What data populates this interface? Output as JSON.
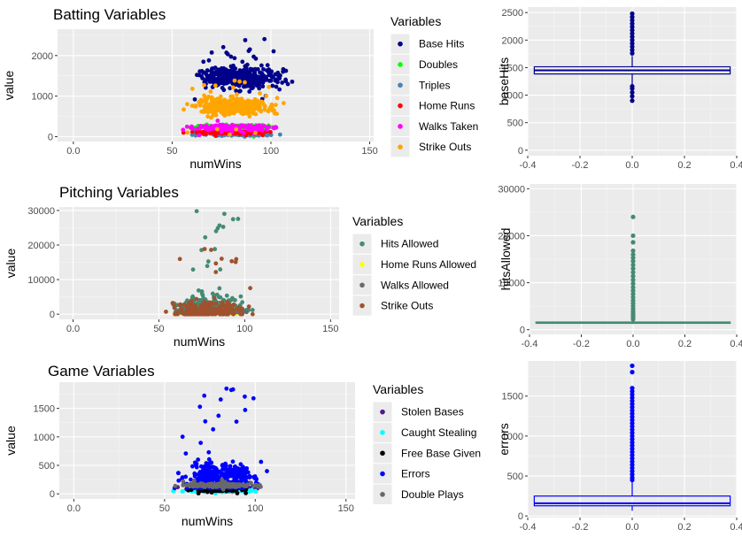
{
  "chart_data": [
    {
      "type": "scatter",
      "id": "batting",
      "title": "Batting Variables",
      "xlabel": "numWins",
      "ylabel": "value",
      "xlim": [
        -8,
        152
      ],
      "ylim": [
        -120,
        2650
      ],
      "xticks": [
        0,
        50,
        100,
        150
      ],
      "yticks": [
        0,
        1000,
        2000
      ],
      "legend_title": "Variables",
      "legend_position": "right",
      "grid": true,
      "series": [
        {
          "name": "Base Hits",
          "color": "#00008b",
          "xrange": [
            0,
            145
          ],
          "yrange": [
            900,
            2500
          ],
          "center": [
            85,
            1450
          ],
          "n": 420
        },
        {
          "name": "Doubles",
          "color": "#00ff00",
          "xrange": [
            0,
            145
          ],
          "yrange": [
            0,
            380
          ],
          "center": [
            80,
            240
          ],
          "n": 160
        },
        {
          "name": "Triples",
          "color": "#4682b4",
          "xrange": [
            0,
            145
          ],
          "yrange": [
            0,
            160
          ],
          "center": [
            80,
            50
          ],
          "n": 80
        },
        {
          "name": "Home Runs",
          "color": "#ff0000",
          "xrange": [
            0,
            145
          ],
          "yrange": [
            0,
            260
          ],
          "center": [
            80,
            110
          ],
          "n": 140
        },
        {
          "name": "Walks Taken",
          "color": "#ff00ff",
          "xrange": [
            0,
            145
          ],
          "yrange": [
            0,
            440
          ],
          "center": [
            80,
            230
          ],
          "n": 160
        },
        {
          "name": "Strike Outs",
          "color": "#ffa500",
          "xrange": [
            0,
            145
          ],
          "yrange": [
            0,
            1400
          ],
          "center": [
            80,
            750
          ],
          "n": 380
        }
      ]
    },
    {
      "type": "scatter",
      "id": "pitching",
      "title": "Pitching Variables",
      "xlabel": "numWins",
      "ylabel": "value",
      "xlim": [
        -8,
        155
      ],
      "ylim": [
        -1500,
        31000
      ],
      "xticks": [
        0,
        50,
        100,
        150
      ],
      "yticks": [
        0,
        10000,
        20000,
        30000
      ],
      "legend_title": "Variables",
      "legend_position": "right",
      "grid": true,
      "series": [
        {
          "name": "Hits Allowed",
          "color": "#458b74",
          "xrange": [
            0,
            145
          ],
          "yrange": [
            1200,
            30000
          ],
          "center": [
            80,
            1500
          ],
          "n": 260
        },
        {
          "name": "Home Runs Allowed",
          "color": "#ffff00",
          "xrange": [
            0,
            145
          ],
          "yrange": [
            0,
            300
          ],
          "center": [
            80,
            120
          ],
          "n": 80
        },
        {
          "name": "Walks Allowed",
          "color": "#696969",
          "xrange": [
            0,
            145
          ],
          "yrange": [
            0,
            1000
          ],
          "center": [
            80,
            550
          ],
          "n": 120
        },
        {
          "name": "Strike Outs",
          "color": "#a0522d",
          "xrange": [
            0,
            145
          ],
          "yrange": [
            0,
            19000
          ],
          "center": [
            80,
            800
          ],
          "n": 200
        }
      ]
    },
    {
      "type": "scatter",
      "id": "game",
      "title": "Game Variables",
      "xlabel": "numWins",
      "ylabel": "value",
      "xlim": [
        -8,
        155
      ],
      "ylim": [
        -90,
        1960
      ],
      "xticks": [
        0,
        50,
        100,
        150
      ],
      "yticks": [
        0,
        500,
        1000,
        1500
      ],
      "legend_title": "Variables",
      "legend_position": "right",
      "grid": true,
      "series": [
        {
          "name": "Stolen Bases",
          "color": "#551a8b",
          "xrange": [
            0,
            145
          ],
          "yrange": [
            0,
            300
          ],
          "center": [
            80,
            90
          ],
          "n": 120
        },
        {
          "name": "Caught Stealing",
          "color": "#00ffff",
          "xrange": [
            0,
            145
          ],
          "yrange": [
            0,
            120
          ],
          "center": [
            80,
            50
          ],
          "n": 120
        },
        {
          "name": "Free Base Given",
          "color": "#000000",
          "xrange": [
            0,
            145
          ],
          "yrange": [
            0,
            80
          ],
          "center": [
            80,
            60
          ],
          "n": 60
        },
        {
          "name": "Errors",
          "color": "#0000ff",
          "xrange": [
            0,
            145
          ],
          "yrange": [
            100,
            1900
          ],
          "center": [
            80,
            300
          ],
          "n": 360
        },
        {
          "name": "Double Plays",
          "color": "#696969",
          "xrange": [
            0,
            145
          ],
          "yrange": [
            50,
            250
          ],
          "center": [
            80,
            150
          ],
          "n": 180
        }
      ]
    },
    {
      "type": "box",
      "id": "baseHits-box",
      "ylabel": "baseHits",
      "xlim": [
        -0.4,
        0.4
      ],
      "ylim": [
        -100,
        2600
      ],
      "xticks": [
        -0.4,
        -0.2,
        0.0,
        0.2,
        0.4
      ],
      "yticks": [
        0,
        500,
        1000,
        1500,
        2000,
        2500
      ],
      "color": "#00008b",
      "box": {
        "q1": 1385,
        "median": 1450,
        "q3": 1515,
        "whisker_low": 1190,
        "whisker_high": 1710
      },
      "outliers": [
        900,
        980,
        1050,
        1120,
        1160,
        1760,
        1820,
        1880,
        1940,
        2000,
        2060,
        2120,
        2180,
        2240,
        2300,
        2360,
        2420,
        2480
      ]
    },
    {
      "type": "box",
      "id": "hitsAllowed-box",
      "ylabel": "hitsAllowed",
      "xlim": [
        -0.4,
        0.4
      ],
      "ylim": [
        -1000,
        31000
      ],
      "xticks": [
        -0.4,
        -0.2,
        0.0,
        0.2,
        0.4
      ],
      "yticks": [
        0,
        10000,
        20000,
        30000
      ],
      "color": "#458b74",
      "box": {
        "q1": 1420,
        "median": 1520,
        "q3": 1640,
        "whisker_low": 1220,
        "whisker_high": 1950
      },
      "outliers": [
        2200,
        2600,
        3000,
        3400,
        3900,
        4400,
        5000,
        5600,
        6200,
        6900,
        7600,
        8300,
        9000,
        9800,
        10600,
        11400,
        12200,
        13000,
        13800,
        14600,
        15300,
        16000,
        16800,
        18600,
        20000,
        24000
      ]
    },
    {
      "type": "box",
      "id": "errors-box",
      "ylabel": "errors",
      "xlim": [
        -0.4,
        0.4
      ],
      "ylim": [
        -20,
        1940
      ],
      "xticks": [
        -0.4,
        -0.2,
        0.0,
        0.2,
        0.4
      ],
      "yticks": [
        0,
        500,
        1000,
        1500
      ],
      "color": "#0000ff",
      "box": {
        "q1": 127,
        "median": 159,
        "q3": 249,
        "whisker_low": 65,
        "whisker_high": 430
      },
      "outliers": [
        450,
        480,
        520,
        560,
        600,
        640,
        680,
        720,
        760,
        800,
        840,
        880,
        920,
        960,
        1000,
        1040,
        1080,
        1120,
        1160,
        1200,
        1240,
        1280,
        1320,
        1360,
        1400,
        1440,
        1480,
        1520,
        1560,
        1600,
        1800,
        1880
      ]
    }
  ]
}
